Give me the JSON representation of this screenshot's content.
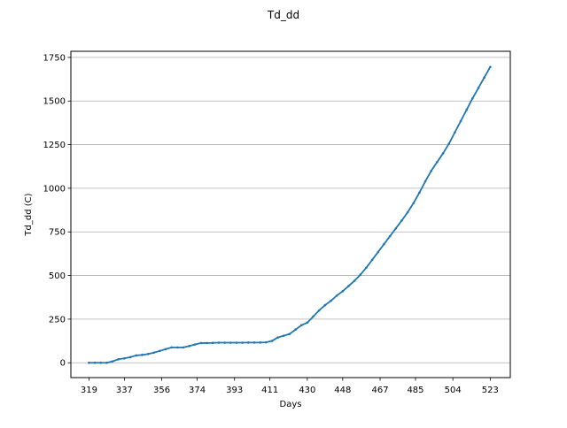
{
  "chart_data": {
    "type": "line",
    "title": "Td_dd",
    "xlabel": "Days",
    "ylabel": "Td_dd (C)",
    "xlim": [
      309.8,
      533.2
    ],
    "ylim": [
      -85,
      1785
    ],
    "xticks": [
      319,
      337,
      356,
      374,
      393,
      411,
      430,
      448,
      467,
      485,
      504,
      523
    ],
    "yticks": [
      0,
      250,
      500,
      750,
      1000,
      1250,
      1500,
      1750
    ],
    "grid": "y-major",
    "line_color": "#1f77b4",
    "marker": "point",
    "series": [
      {
        "x": [
          319,
          322,
          325,
          328,
          331,
          334,
          337,
          340,
          343,
          346,
          349,
          352,
          355,
          358,
          361,
          364,
          367,
          370,
          373,
          376,
          379,
          382,
          385,
          388,
          391,
          394,
          397,
          400,
          403,
          406,
          409,
          412,
          415,
          418,
          421,
          424,
          427,
          430,
          433,
          436,
          439,
          442,
          445,
          448,
          451,
          454,
          457,
          460,
          463,
          466,
          469,
          472,
          475,
          478,
          481,
          484,
          487,
          490,
          493,
          496,
          499,
          502,
          505,
          508,
          511,
          514,
          517,
          520,
          523
        ],
        "y": [
          0,
          0,
          0,
          0,
          8,
          20,
          25,
          32,
          42,
          45,
          50,
          58,
          68,
          78,
          88,
          88,
          88,
          96,
          105,
          113,
          113,
          114,
          115,
          115,
          115,
          115,
          115,
          116,
          116,
          116,
          117,
          125,
          145,
          155,
          165,
          190,
          215,
          230,
          265,
          300,
          330,
          355,
          385,
          410,
          440,
          470,
          505,
          545,
          590,
          635,
          680,
          725,
          770,
          815,
          862,
          915,
          975,
          1040,
          1100,
          1150,
          1200,
          1255,
          1320,
          1385,
          1450,
          1515,
          1575,
          1635,
          1695
        ]
      }
    ]
  }
}
